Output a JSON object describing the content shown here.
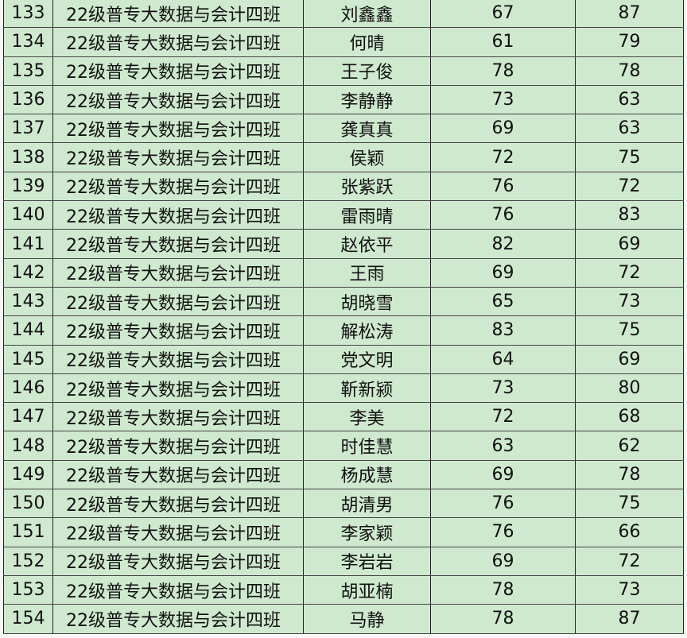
{
  "rows": [
    {
      "no": "133",
      "class": "22级普专大数据与会计四班",
      "name": "刘鑫鑫",
      "score1": "67",
      "score2": "87"
    },
    {
      "no": "134",
      "class": "22级普专大数据与会计四班",
      "name": "何晴",
      "score1": "61",
      "score2": "79"
    },
    {
      "no": "135",
      "class": "22级普专大数据与会计四班",
      "name": "王子俊",
      "score1": "78",
      "score2": "78"
    },
    {
      "no": "136",
      "class": "22级普专大数据与会计四班",
      "name": "李静静",
      "score1": "73",
      "score2": "63"
    },
    {
      "no": "137",
      "class": "22级普专大数据与会计四班",
      "name": "龚真真",
      "score1": "69",
      "score2": "63"
    },
    {
      "no": "138",
      "class": "22级普专大数据与会计四班",
      "name": "侯颖",
      "score1": "72",
      "score2": "75"
    },
    {
      "no": "139",
      "class": "22级普专大数据与会计四班",
      "name": "张紫跃",
      "score1": "76",
      "score2": "72"
    },
    {
      "no": "140",
      "class": "22级普专大数据与会计四班",
      "name": "雷雨晴",
      "score1": "76",
      "score2": "83"
    },
    {
      "no": "141",
      "class": "22级普专大数据与会计四班",
      "name": "赵依平",
      "score1": "82",
      "score2": "69"
    },
    {
      "no": "142",
      "class": "22级普专大数据与会计四班",
      "name": "王雨",
      "score1": "69",
      "score2": "72"
    },
    {
      "no": "143",
      "class": "22级普专大数据与会计四班",
      "name": "胡晓雪",
      "score1": "65",
      "score2": "73"
    },
    {
      "no": "144",
      "class": "22级普专大数据与会计四班",
      "name": "解松涛",
      "score1": "83",
      "score2": "75"
    },
    {
      "no": "145",
      "class": "22级普专大数据与会计四班",
      "name": "党文明",
      "score1": "64",
      "score2": "69"
    },
    {
      "no": "146",
      "class": "22级普专大数据与会计四班",
      "name": "靳新颍",
      "score1": "73",
      "score2": "80"
    },
    {
      "no": "147",
      "class": "22级普专大数据与会计四班",
      "name": "李美",
      "score1": "72",
      "score2": "68"
    },
    {
      "no": "148",
      "class": "22级普专大数据与会计四班",
      "name": "时佳慧",
      "score1": "63",
      "score2": "62"
    },
    {
      "no": "149",
      "class": "22级普专大数据与会计四班",
      "name": "杨成慧",
      "score1": "69",
      "score2": "78"
    },
    {
      "no": "150",
      "class": "22级普专大数据与会计四班",
      "name": "胡清男",
      "score1": "76",
      "score2": "75"
    },
    {
      "no": "151",
      "class": "22级普专大数据与会计四班",
      "name": "李家颖",
      "score1": "76",
      "score2": "66"
    },
    {
      "no": "152",
      "class": "22级普专大数据与会计四班",
      "name": "李岩岩",
      "score1": "69",
      "score2": "72"
    },
    {
      "no": "153",
      "class": "22级普专大数据与会计四班",
      "name": "胡亚楠",
      "score1": "78",
      "score2": "73"
    },
    {
      "no": "154",
      "class": "22级普专大数据与会计四班",
      "name": "马静",
      "score1": "78",
      "score2": "87"
    }
  ],
  "colors": {
    "cell_background": "#cfe9cf",
    "border": "#222222"
  }
}
